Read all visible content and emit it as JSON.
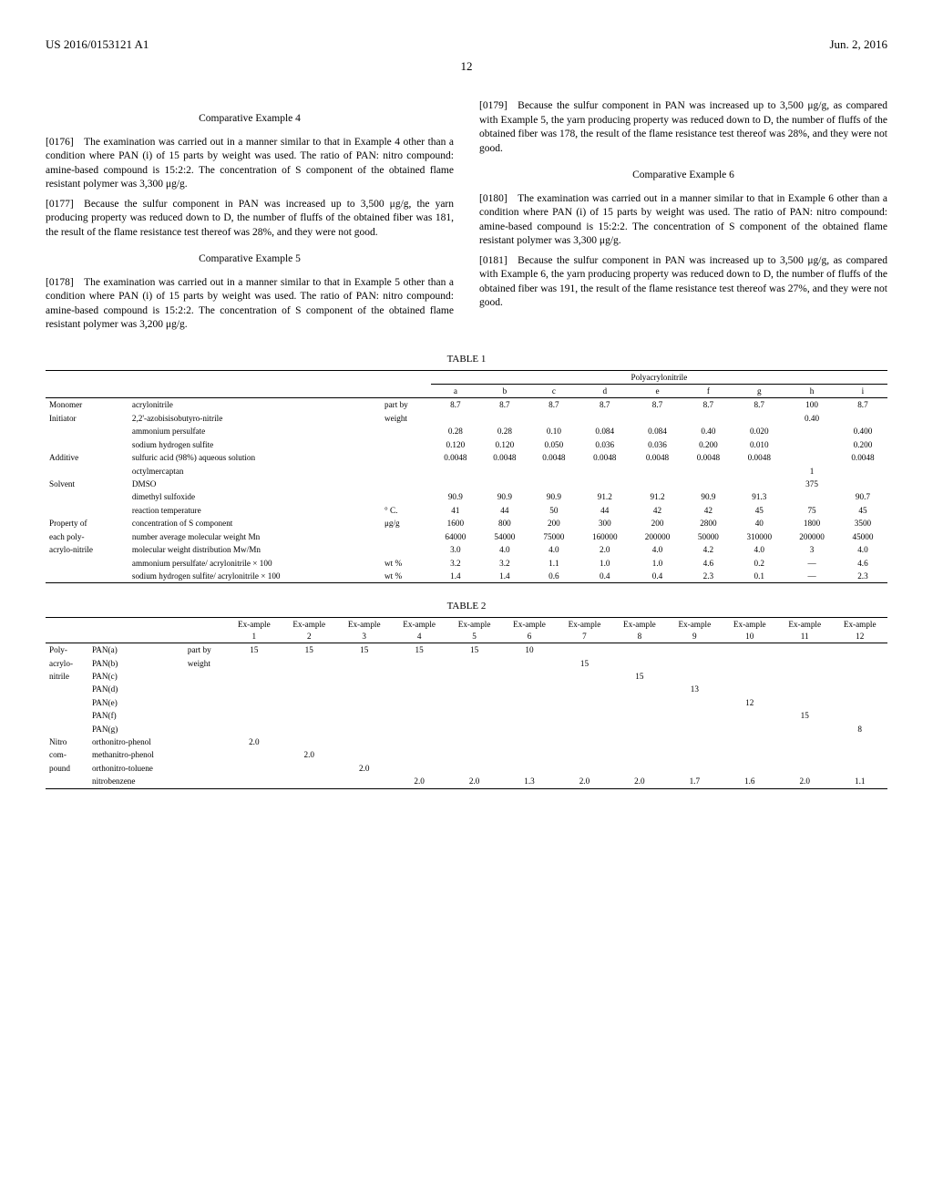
{
  "header": {
    "left": "US 2016/0153121 A1",
    "right": "Jun. 2, 2016",
    "page": "12"
  },
  "body": {
    "comp4_title": "Comparative Example 4",
    "p0176": "[0176] The examination was carried out in a manner similar to that in Example 4 other than a condition where PAN (i) of 15 parts by weight was used. The ratio of PAN: nitro compound: amine-based compound is 15:2:2. The concentration of S component of the obtained flame resistant polymer was 3,300 μg/g.",
    "p0177": "[0177] Because the sulfur component in PAN was increased up to 3,500 μg/g, the yarn producing property was reduced down to D, the number of fluffs of the obtained fiber was 181, the result of the flame resistance test thereof was 28%, and they were not good.",
    "comp5_title": "Comparative Example 5",
    "p0178": "[0178] The examination was carried out in a manner similar to that in Example 5 other than a condition where PAN (i) of 15 parts by weight was used. The ratio of PAN: nitro compound: amine-based compound is 15:2:2. The concentration of S component of the obtained flame resistant polymer was 3,200 μg/g.",
    "p0179": "[0179] Because the sulfur component in PAN was increased up to 3,500 μg/g, as compared with Example 5, the yarn producing property was reduced down to D, the number of fluffs of the obtained fiber was 178, the result of the flame resistance test thereof was 28%, and they were not good.",
    "comp6_title": "Comparative Example 6",
    "p0180": "[0180] The examination was carried out in a manner similar to that in Example 6 other than a condition where PAN (i) of 15 parts by weight was used. The ratio of PAN: nitro compound: amine-based compound is 15:2:2. The concentration of S component of the obtained flame resistant polymer was 3,300 μg/g.",
    "p0181": "[0181] Because the sulfur component in PAN was increased up to 3,500 μg/g, as compared with Example 6, the yarn producing property was reduced down to D, the number of fluffs of the obtained fiber was 191, the result of the flame resistance test thereof was 27%, and they were not good."
  },
  "table1": {
    "caption": "TABLE 1",
    "group_header": "Polyacrylonitrile",
    "cols": [
      "a",
      "b",
      "c",
      "d",
      "e",
      "f",
      "g",
      "h",
      "i"
    ],
    "rows": [
      {
        "g": "Monomer",
        "l": "acrylonitrile",
        "u": "part by",
        "v": [
          "8.7",
          "8.7",
          "8.7",
          "8.7",
          "8.7",
          "8.7",
          "8.7",
          "100",
          "8.7"
        ]
      },
      {
        "g": "Initiator",
        "l": "2,2'-azobisisobutyro-nitrile",
        "u": "weight",
        "v": [
          "",
          "",
          "",
          "",
          "",
          "",
          "",
          "0.40",
          ""
        ]
      },
      {
        "g": "",
        "l": "ammonium persulfate",
        "u": "",
        "v": [
          "0.28",
          "0.28",
          "0.10",
          "0.084",
          "0.084",
          "0.40",
          "0.020",
          "",
          "0.400"
        ]
      },
      {
        "g": "",
        "l": "sodium hydrogen sulfite",
        "u": "",
        "v": [
          "0.120",
          "0.120",
          "0.050",
          "0.036",
          "0.036",
          "0.200",
          "0.010",
          "",
          "0.200"
        ]
      },
      {
        "g": "Additive",
        "l": "sulfuric acid (98%) aqueous solution",
        "u": "",
        "v": [
          "0.0048",
          "0.0048",
          "0.0048",
          "0.0048",
          "0.0048",
          "0.0048",
          "0.0048",
          "",
          "0.0048"
        ]
      },
      {
        "g": "",
        "l": "octylmercaptan",
        "u": "",
        "v": [
          "",
          "",
          "",
          "",
          "",
          "",
          "",
          "1",
          ""
        ]
      },
      {
        "g": "Solvent",
        "l": "DMSO",
        "u": "",
        "v": [
          "",
          "",
          "",
          "",
          "",
          "",
          "",
          "375",
          ""
        ]
      },
      {
        "g": "",
        "l": "dimethyl sulfoxide",
        "u": "",
        "v": [
          "90.9",
          "90.9",
          "90.9",
          "91.2",
          "91.2",
          "90.9",
          "91.3",
          "",
          "90.7"
        ]
      },
      {
        "g": "",
        "l": "reaction temperature",
        "u": "° C.",
        "v": [
          "41",
          "44",
          "50",
          "44",
          "42",
          "42",
          "45",
          "75",
          "45"
        ]
      },
      {
        "g": "Property of",
        "l": "concentration of S component",
        "u": "μg/g",
        "v": [
          "1600",
          "800",
          "200",
          "300",
          "200",
          "2800",
          "40",
          "1800",
          "3500"
        ]
      },
      {
        "g": "each poly-",
        "l": "number average molecular weight Mn",
        "u": "",
        "v": [
          "64000",
          "54000",
          "75000",
          "160000",
          "200000",
          "50000",
          "310000",
          "200000",
          "45000"
        ]
      },
      {
        "g": "acrylo-nitrile",
        "l": "molecular weight distribution Mw/Mn",
        "u": "",
        "v": [
          "3.0",
          "4.0",
          "4.0",
          "2.0",
          "4.0",
          "4.2",
          "4.0",
          "3",
          "4.0"
        ]
      },
      {
        "g": "",
        "l": "ammonium persulfate/ acrylonitrile × 100",
        "u": "wt %",
        "v": [
          "3.2",
          "3.2",
          "1.1",
          "1.0",
          "1.0",
          "4.6",
          "0.2",
          "—",
          "4.6"
        ]
      },
      {
        "g": "",
        "l": "sodium hydrogen sulfite/ acrylonitrile × 100",
        "u": "wt %",
        "v": [
          "1.4",
          "1.4",
          "0.6",
          "0.4",
          "0.4",
          "2.3",
          "0.1",
          "—",
          "2.3"
        ]
      }
    ]
  },
  "table2": {
    "caption": "TABLE 2",
    "cols": [
      "Ex-ample 1",
      "Ex-ample 2",
      "Ex-ample 3",
      "Ex-ample 4",
      "Ex-ample 5",
      "Ex-ample 6",
      "Ex-ample 7",
      "Ex-ample 8",
      "Ex-ample 9",
      "Ex-ample 10",
      "Ex-ample 11",
      "Ex-ample 12"
    ],
    "rows": [
      {
        "g": "Poly-",
        "l": "PAN(a)",
        "u": "part by",
        "v": [
          "15",
          "15",
          "15",
          "15",
          "15",
          "10",
          "",
          "",
          "",
          "",
          "",
          ""
        ]
      },
      {
        "g": "acrylo-",
        "l": "PAN(b)",
        "u": "weight",
        "v": [
          "",
          "",
          "",
          "",
          "",
          "",
          "15",
          "",
          "",
          "",
          "",
          ""
        ]
      },
      {
        "g": "nitrile",
        "l": "PAN(c)",
        "u": "",
        "v": [
          "",
          "",
          "",
          "",
          "",
          "",
          "",
          "15",
          "",
          "",
          "",
          ""
        ]
      },
      {
        "g": "",
        "l": "PAN(d)",
        "u": "",
        "v": [
          "",
          "",
          "",
          "",
          "",
          "",
          "",
          "",
          "13",
          "",
          "",
          ""
        ]
      },
      {
        "g": "",
        "l": "PAN(e)",
        "u": "",
        "v": [
          "",
          "",
          "",
          "",
          "",
          "",
          "",
          "",
          "",
          "12",
          "",
          ""
        ]
      },
      {
        "g": "",
        "l": "PAN(f)",
        "u": "",
        "v": [
          "",
          "",
          "",
          "",
          "",
          "",
          "",
          "",
          "",
          "",
          "15",
          ""
        ]
      },
      {
        "g": "",
        "l": "PAN(g)",
        "u": "",
        "v": [
          "",
          "",
          "",
          "",
          "",
          "",
          "",
          "",
          "",
          "",
          "",
          "8"
        ]
      },
      {
        "g": "Nitro",
        "l": "orthonitro-phenol",
        "u": "",
        "v": [
          "2.0",
          "",
          "",
          "",
          "",
          "",
          "",
          "",
          "",
          "",
          "",
          ""
        ]
      },
      {
        "g": "com-",
        "l": "methanitro-phenol",
        "u": "",
        "v": [
          "",
          "2.0",
          "",
          "",
          "",
          "",
          "",
          "",
          "",
          "",
          "",
          ""
        ]
      },
      {
        "g": "pound",
        "l": "orthonitro-toluene",
        "u": "",
        "v": [
          "",
          "",
          "2.0",
          "",
          "",
          "",
          "",
          "",
          "",
          "",
          "",
          ""
        ]
      },
      {
        "g": "",
        "l": "nitrobenzene",
        "u": "",
        "v": [
          "",
          "",
          "",
          "2.0",
          "2.0",
          "1.3",
          "2.0",
          "2.0",
          "1.7",
          "1.6",
          "2.0",
          "1.1"
        ]
      }
    ]
  }
}
